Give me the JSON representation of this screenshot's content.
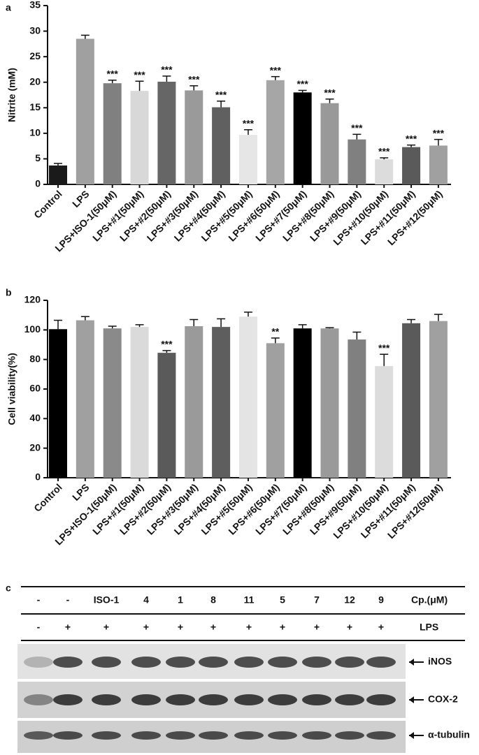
{
  "chart_data": [
    {
      "type": "bar",
      "panel_label": "a",
      "y_label": "Nitrite (mM)",
      "categories": [
        "Control",
        "LPS",
        "LPS+ISO-1(50μM)",
        "LPS+#1(50μM)",
        "LPS+#2(50μM)",
        "LPS+#3(50μM)",
        "LPS+#4(50μM)",
        "LPS+#5(50μM)",
        "LPS+#6(50μM)",
        "LPS+#7(50μM)",
        "LPS+#8(50μM)",
        "LPS+#9(50μM)",
        "LPS+#10(50μM)",
        "LPS+#11(50μM)",
        "LPS+#12(50μM)"
      ],
      "values": [
        3.7,
        28.5,
        19.8,
        18.3,
        20.1,
        18.4,
        15.1,
        9.7,
        20.4,
        18.0,
        15.9,
        8.8,
        4.9,
        7.3,
        7.6
      ],
      "errors": [
        0.4,
        0.7,
        0.6,
        1.9,
        1.1,
        0.9,
        1.2,
        1.0,
        0.7,
        0.4,
        0.8,
        1.0,
        0.3,
        0.4,
        1.2
      ],
      "colors": [
        "#1a1a1a",
        "#a0a0a0",
        "#808080",
        "#d8d8d8",
        "#666666",
        "#9a9a9a",
        "#606060",
        "#e6e6e6",
        "#a6a6a6",
        "#000000",
        "#999999",
        "#808080",
        "#dcdcdc",
        "#5a5a5a",
        "#a0a0a0"
      ],
      "annotations": [
        null,
        null,
        "***",
        "***",
        "***",
        "***",
        "***",
        "***",
        "***",
        "***",
        "***",
        "***",
        "***",
        "***",
        "***"
      ],
      "ylim": [
        0,
        35
      ],
      "yticks": [
        0,
        5,
        10,
        15,
        20,
        25,
        30,
        35
      ]
    },
    {
      "type": "bar",
      "panel_label": "b",
      "y_label": "Cell viability(%)",
      "categories": [
        "Control",
        "LPS",
        "LPS+ISO-1(50μM)",
        "LPS+#1(50μM)",
        "LPS+#2(50μM)",
        "LPS+#3(50μM)",
        "LPS+#4(50μM)",
        "LPS+#5(50μM)",
        "LPS+#6(50μM)",
        "LPS+#7(50μM)",
        "LPS+#8(50μM)",
        "LPS+#9(50μM)",
        "LPS+#10(50μM)",
        "LPS+#11(50μM)",
        "LPS+#12(50μM)"
      ],
      "values": [
        100.5,
        106.5,
        101,
        102,
        84.5,
        102.5,
        102,
        109,
        91,
        101,
        101,
        93.5,
        75.5,
        104.5,
        106
      ],
      "errors": [
        6,
        2.5,
        1.5,
        1.5,
        1.5,
        4.5,
        5.5,
        3,
        3.5,
        2.5,
        0.5,
        5,
        8,
        2.5,
        4.5
      ],
      "colors": [
        "#000000",
        "#a0a0a0",
        "#8a8a8a",
        "#dadada",
        "#5a5a5a",
        "#9a9a9a",
        "#5e5e5e",
        "#e4e4e4",
        "#a0a0a0",
        "#000000",
        "#9a9a9a",
        "#808080",
        "#dcdcdc",
        "#5a5a5a",
        "#a0a0a0"
      ],
      "annotations": [
        null,
        null,
        null,
        null,
        "***",
        null,
        null,
        null,
        "**",
        null,
        null,
        null,
        "***",
        null,
        null
      ],
      "ylim": [
        0,
        120
      ],
      "yticks": [
        0,
        20,
        40,
        60,
        80,
        100,
        120
      ]
    }
  ],
  "blot": {
    "panel_label": "c",
    "compound_label": "Cp.(μM)",
    "lps_label": "LPS",
    "compounds": [
      "-",
      "-",
      "ISO-1",
      "4",
      "1",
      "8",
      "11",
      "5",
      "7",
      "12",
      "9"
    ],
    "lps": [
      "-",
      "+",
      "+",
      "+",
      "+",
      "+",
      "+",
      "+",
      "+",
      "+",
      "+"
    ],
    "bands": [
      "iNOS",
      "COX-2",
      "α-tubulin"
    ]
  }
}
